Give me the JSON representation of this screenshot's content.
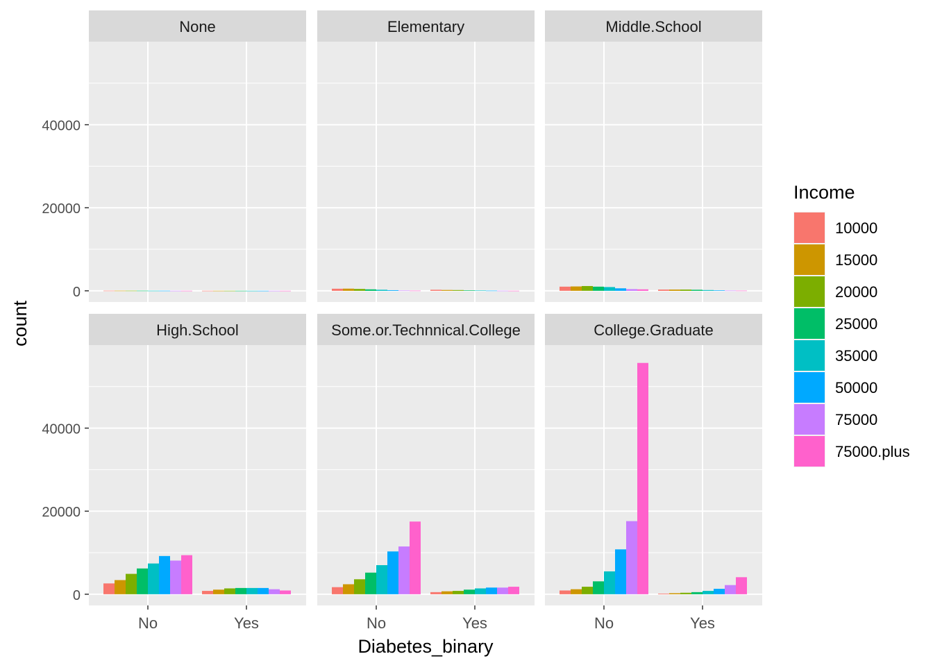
{
  "chart_data": {
    "type": "bar",
    "xlabel": "Diabetes_binary",
    "ylabel": "count",
    "categories": [
      "No",
      "Yes"
    ],
    "ylim": [
      -2700,
      60000
    ],
    "yticks": [
      0,
      20000,
      40000
    ],
    "grid": true,
    "legend_position": "right",
    "legend": {
      "title": "Income",
      "entries": [
        {
          "label": "10000",
          "color": "#F8766D"
        },
        {
          "label": "15000",
          "color": "#CD9600"
        },
        {
          "label": "20000",
          "color": "#7CAE00"
        },
        {
          "label": "25000",
          "color": "#00BE67"
        },
        {
          "label": "35000",
          "color": "#00BFC4"
        },
        {
          "label": "50000",
          "color": "#00A9FF"
        },
        {
          "label": "75000",
          "color": "#C77CFF"
        },
        {
          "label": "75000.plus",
          "color": "#FF61CC"
        }
      ]
    },
    "facets": [
      {
        "name": "None",
        "values": {
          "No": [
            30,
            30,
            30,
            30,
            20,
            20,
            10,
            10
          ],
          "Yes": [
            10,
            10,
            10,
            10,
            5,
            5,
            5,
            5
          ]
        }
      },
      {
        "name": "Elementary",
        "values": {
          "No": [
            500,
            520,
            450,
            350,
            250,
            150,
            60,
            40
          ],
          "Yes": [
            250,
            200,
            180,
            120,
            70,
            40,
            20,
            10
          ]
        }
      },
      {
        "name": "Middle.School",
        "values": {
          "No": [
            1000,
            1050,
            1150,
            1000,
            900,
            600,
            400,
            350
          ],
          "Yes": [
            300,
            300,
            300,
            250,
            180,
            120,
            50,
            40
          ]
        }
      },
      {
        "name": "High.School",
        "values": {
          "No": [
            2600,
            3400,
            4900,
            6200,
            7400,
            9200,
            8100,
            9400
          ],
          "Yes": [
            800,
            1100,
            1400,
            1500,
            1500,
            1500,
            1200,
            900
          ]
        }
      },
      {
        "name": "Some.or.Technnical.College",
        "values": {
          "No": [
            1700,
            2400,
            3600,
            5200,
            7000,
            10300,
            11500,
            17500
          ],
          "Yes": [
            500,
            700,
            800,
            1100,
            1400,
            1600,
            1600,
            1800
          ]
        }
      },
      {
        "name": "College.Graduate",
        "values": {
          "No": [
            900,
            1200,
            1800,
            3100,
            5500,
            10800,
            17600,
            55700
          ],
          "Yes": [
            150,
            250,
            350,
            500,
            800,
            1300,
            2200,
            4100
          ]
        }
      }
    ]
  }
}
